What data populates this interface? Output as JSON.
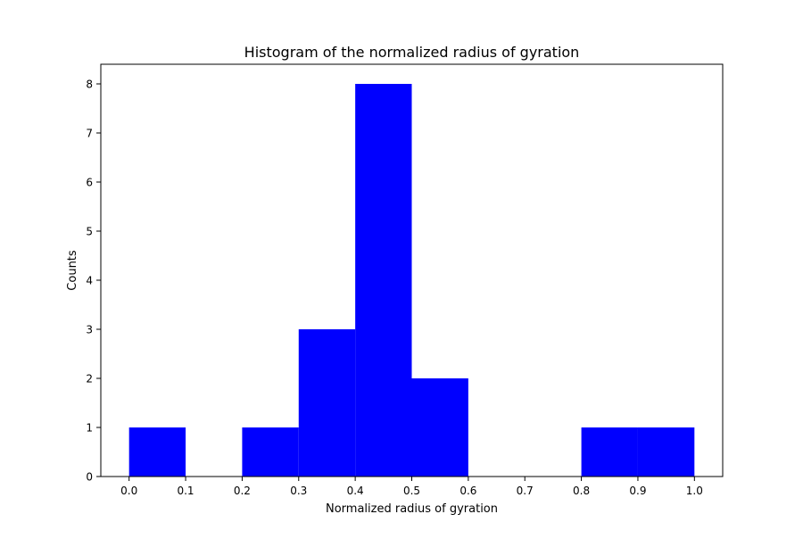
{
  "chart_data": {
    "type": "bar",
    "title": "Histogram of the normalized radius of gyration",
    "xlabel": "Normalized radius of gyration",
    "ylabel": "Counts",
    "xlim": [
      -0.05,
      1.05
    ],
    "ylim": [
      0,
      8.4
    ],
    "bins": [
      {
        "start": 0.0,
        "end": 0.1,
        "count": 1
      },
      {
        "start": 0.1,
        "end": 0.2,
        "count": 0
      },
      {
        "start": 0.2,
        "end": 0.3,
        "count": 1
      },
      {
        "start": 0.3,
        "end": 0.4,
        "count": 3
      },
      {
        "start": 0.4,
        "end": 0.5,
        "count": 8
      },
      {
        "start": 0.5,
        "end": 0.6,
        "count": 2
      },
      {
        "start": 0.6,
        "end": 0.7,
        "count": 0
      },
      {
        "start": 0.7,
        "end": 0.8,
        "count": 0
      },
      {
        "start": 0.8,
        "end": 0.9,
        "count": 1
      },
      {
        "start": 0.9,
        "end": 1.0,
        "count": 1
      }
    ],
    "xticks": [
      0.0,
      0.1,
      0.2,
      0.3,
      0.4,
      0.5,
      0.6,
      0.7,
      0.8,
      0.9,
      1.0
    ],
    "xtick_labels": [
      "0.0",
      "0.1",
      "0.2",
      "0.3",
      "0.4",
      "0.5",
      "0.6",
      "0.7",
      "0.8",
      "0.9",
      "1.0"
    ],
    "yticks": [
      0,
      1,
      2,
      3,
      4,
      5,
      6,
      7,
      8
    ],
    "ytick_labels": [
      "0",
      "1",
      "2",
      "3",
      "4",
      "5",
      "6",
      "7",
      "8"
    ],
    "bar_color": "#0000ff",
    "grid": false,
    "legend": "none"
  }
}
